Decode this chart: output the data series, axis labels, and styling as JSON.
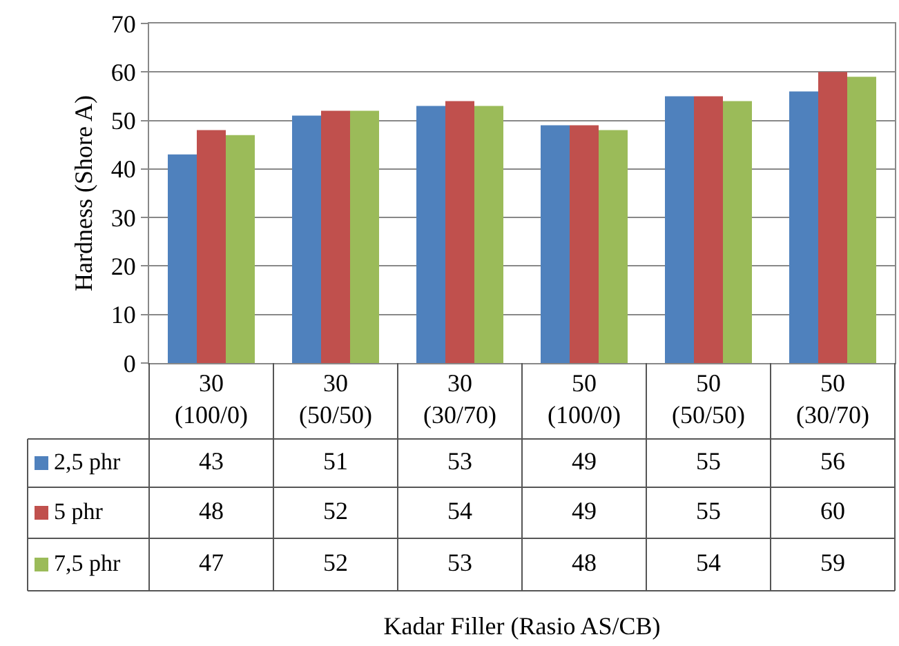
{
  "chart_data": {
    "type": "bar",
    "annotations": [
      "Kadar Filler (Rasio AS/CB)"
    ],
    "ylabel": "Hardness (Shore A)",
    "categories": [
      "30\n(100/0)",
      "30\n(50/50)",
      "30\n(30/70)",
      "50\n(100/0)",
      "50\n(50/50)",
      "50\n(30/70)"
    ],
    "series": [
      {
        "name": "2,5 phr",
        "color": "#4f81bd",
        "values": [
          43,
          51,
          53,
          49,
          55,
          56
        ]
      },
      {
        "name": "5 phr",
        "color": "#c0504d",
        "values": [
          48,
          52,
          54,
          49,
          55,
          60
        ]
      },
      {
        "name": "7,5 phr",
        "color": "#9bbb59",
        "values": [
          47,
          52,
          53,
          48,
          54,
          59
        ]
      }
    ],
    "ylim": [
      0,
      70
    ],
    "yticks": [
      0,
      10,
      20,
      30,
      40,
      50,
      60,
      70
    ],
    "grid": "y",
    "data_labels": true,
    "legend": "bottom left"
  }
}
